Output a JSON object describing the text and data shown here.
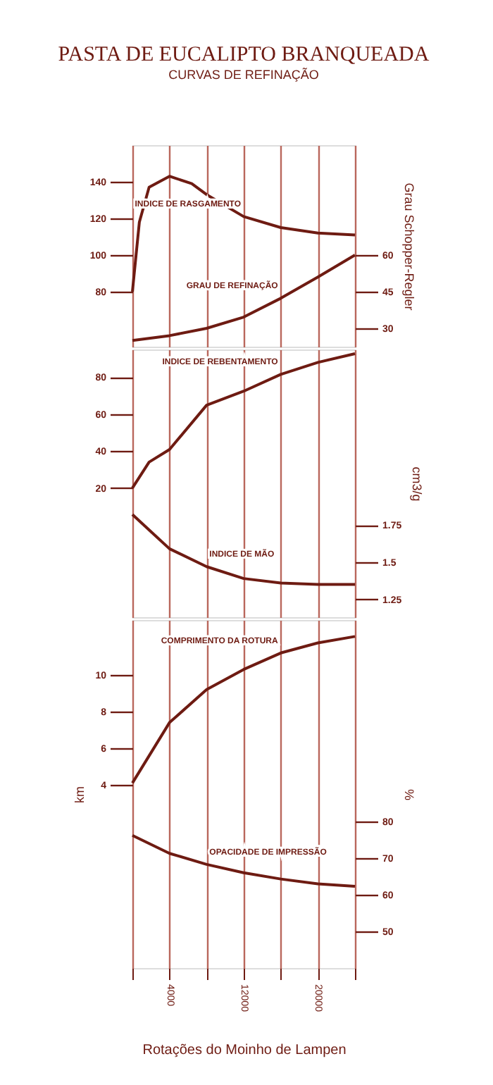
{
  "chart_data": [
    {
      "type": "line",
      "title": "PASTA DE EUCALIPTO BRANQUEADA",
      "subtitle": "CURVAS DE REFINAÇÃO",
      "y2label": "Grau Schopper-Regler",
      "xlim": [
        0,
        24000
      ],
      "xticks": [
        {
          "value": 0,
          "label": null
        },
        4000,
        {
          "value": 8000,
          "label": null
        },
        12000,
        {
          "value": 16000,
          "label": null
        },
        20000,
        {
          "value": 24000,
          "label": null
        }
      ],
      "ylim": [
        50,
        160
      ],
      "yticks": [
        80,
        100,
        120,
        140
      ],
      "y2lim": [
        22.5,
        105
      ],
      "y2ticks": [
        30,
        45,
        60
      ],
      "grid": "x",
      "tick_labels": "y",
      "marker": "none",
      "line_style": "solid",
      "series": [
        {
          "name": "INDICE DE RASGAMENTO",
          "color": "#6e1b12",
          "x": [
            0,
            750,
            1800,
            4000,
            6400,
            8000,
            12000,
            16000,
            20000,
            24000
          ],
          "values": [
            80,
            118,
            137,
            143,
            139,
            133,
            121,
            115,
            112,
            111
          ]
        },
        {
          "name": "GRAU DE REFINAÇÃO",
          "color": "#6e1b12",
          "axis": "y2",
          "x": [
            0,
            4000,
            8000,
            12000,
            16000,
            20000,
            24000
          ],
          "values": [
            25,
            27,
            30,
            34.6,
            42.3,
            51,
            60
          ]
        }
      ]
    },
    {
      "type": "line",
      "y2label": "cm3/g",
      "xlim": [
        0,
        24000
      ],
      "xticks": [
        {
          "value": 0,
          "label": null
        },
        4000,
        {
          "value": 8000,
          "label": null
        },
        12000,
        {
          "value": 16000,
          "label": null
        },
        20000,
        {
          "value": 24000,
          "label": null
        }
      ],
      "ylim": [
        -50,
        95
      ],
      "yticks": [
        20,
        40,
        60,
        80
      ],
      "y2lim": [
        1.13,
        2.93
      ],
      "y2ticks": [
        1.25,
        1.5,
        1.75
      ],
      "grid": "x",
      "tick_labels": "y",
      "marker": "none",
      "line_style": "solid",
      "series": [
        {
          "name": "INDICE DE REBENTAMENTO",
          "color": "#6e1b12",
          "x": [
            0,
            1800,
            4000,
            8000,
            12000,
            16000,
            20000,
            24000
          ],
          "values": [
            20,
            34,
            40.8,
            64.8,
            72.4,
            81.5,
            88,
            92.7
          ]
        },
        {
          "name": "INDICE DE MÃO",
          "color": "#6e1b12",
          "axis": "y2",
          "x": [
            0,
            4000,
            8000,
            12000,
            16000,
            20000,
            24000
          ],
          "values": [
            1.82,
            1.59,
            1.47,
            1.39,
            1.36,
            1.35,
            1.35
          ]
        }
      ]
    },
    {
      "type": "line",
      "xlabel": "Rotações do Moinho de Lampen",
      "ylabel": "km",
      "y2label": "%",
      "xlim": [
        0,
        24000
      ],
      "xticks": [
        {
          "value": 0,
          "label": null
        },
        4000,
        {
          "value": 8000,
          "label": null
        },
        12000,
        {
          "value": 16000,
          "label": null
        },
        20000,
        {
          "value": 24000,
          "label": null
        }
      ],
      "ylim": [
        -6,
        13
      ],
      "yticks": [
        4,
        6,
        8,
        10
      ],
      "y2lim": [
        40,
        135
      ],
      "y2ticks": [
        50,
        60,
        70,
        80
      ],
      "grid": "x",
      "marker": "none",
      "line_style": "solid",
      "series": [
        {
          "name": "COMPRIMENTO DA ROTURA",
          "color": "#6e1b12",
          "x": [
            0,
            4000,
            8000,
            12000,
            16000,
            20000,
            24000
          ],
          "values": [
            4.1,
            7.4,
            9.2,
            10.3,
            11.2,
            11.75,
            12.1
          ]
        },
        {
          "name": "OPACIDADE DE IMPRESSÃO",
          "color": "#6e1b12",
          "axis": "y2",
          "x": [
            0,
            4000,
            8000,
            12000,
            16000,
            20000,
            24000
          ],
          "values": [
            76.2,
            71.3,
            68.3,
            66,
            64.3,
            63,
            62.3
          ]
        }
      ]
    }
  ]
}
